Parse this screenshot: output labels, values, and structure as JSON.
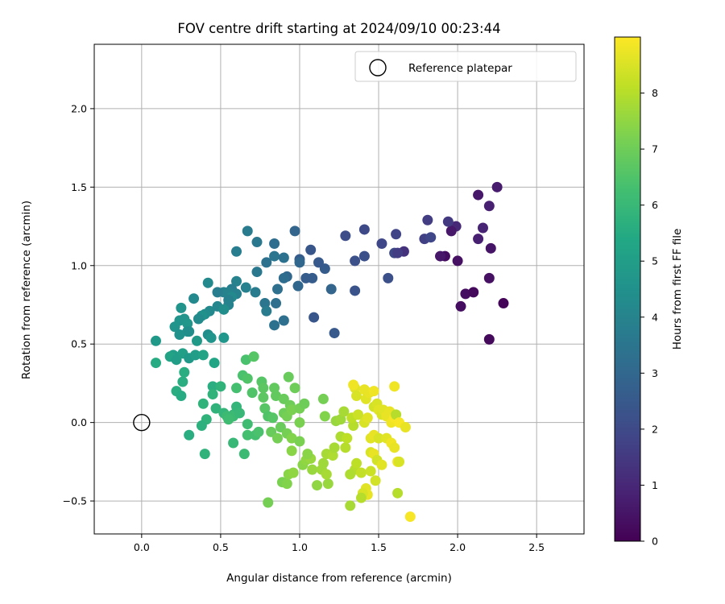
{
  "chart_data": {
    "type": "scatter",
    "title": "FOV centre drift starting at 2024/09/10 00:23:44",
    "xlabel": "Angular distance from reference (arcmin)",
    "ylabel": "Rotation from reference (arcmin)",
    "xlim": [
      -0.3,
      2.8
    ],
    "ylim": [
      -0.71,
      2.41
    ],
    "xticks": [
      0.0,
      0.5,
      1.0,
      1.5,
      2.0,
      2.5
    ],
    "xtick_labels": [
      "0.0",
      "0.5",
      "1.0",
      "1.5",
      "2.0",
      "2.5"
    ],
    "yticks": [
      -0.5,
      0.0,
      0.5,
      1.0,
      1.5,
      2.0
    ],
    "ytick_labels": [
      "−0.5",
      "0.0",
      "0.5",
      "1.0",
      "1.5",
      "2.0"
    ],
    "grid": true,
    "legend": {
      "location": "upper right",
      "entries": [
        "Reference platepar"
      ]
    },
    "reference_point": {
      "x": 0.0,
      "y": 0.0,
      "marker": "open circle"
    },
    "colorbar": {
      "label": "Hours from first FF file",
      "colormap": "viridis",
      "range": [
        0,
        9
      ],
      "ticks": [
        0,
        1,
        2,
        3,
        4,
        5,
        6,
        7,
        8
      ],
      "tick_labels": [
        "0",
        "1",
        "2",
        "3",
        "4",
        "5",
        "6",
        "7",
        "8"
      ]
    },
    "points": [
      {
        "x": 2.25,
        "y": 1.5,
        "h": 0.7
      },
      {
        "x": 2.13,
        "y": 1.45,
        "h": 0.6
      },
      {
        "x": 2.2,
        "y": 1.38,
        "h": 0.8
      },
      {
        "x": 2.16,
        "y": 1.24,
        "h": 0.9
      },
      {
        "x": 2.13,
        "y": 1.17,
        "h": 0.8
      },
      {
        "x": 2.21,
        "y": 1.11,
        "h": 0.5
      },
      {
        "x": 1.99,
        "y": 1.25,
        "h": 1.0
      },
      {
        "x": 1.96,
        "y": 1.22,
        "h": 0.6
      },
      {
        "x": 1.94,
        "y": 1.28,
        "h": 1.5
      },
      {
        "x": 2.0,
        "y": 1.03,
        "h": 0.4
      },
      {
        "x": 1.92,
        "y": 1.06,
        "h": 0.3
      },
      {
        "x": 1.89,
        "y": 1.06,
        "h": 0.6
      },
      {
        "x": 2.05,
        "y": 0.82,
        "h": 0.3
      },
      {
        "x": 2.1,
        "y": 0.83,
        "h": 0.2
      },
      {
        "x": 2.02,
        "y": 0.74,
        "h": 0.3
      },
      {
        "x": 2.29,
        "y": 0.76,
        "h": 0.1
      },
      {
        "x": 2.2,
        "y": 0.92,
        "h": 0.4
      },
      {
        "x": 2.2,
        "y": 0.53,
        "h": 0.2
      },
      {
        "x": 1.81,
        "y": 1.29,
        "h": 1.6
      },
      {
        "x": 1.79,
        "y": 1.17,
        "h": 1.7
      },
      {
        "x": 1.83,
        "y": 1.18,
        "h": 1.9
      },
      {
        "x": 1.66,
        "y": 1.09,
        "h": 1.3
      },
      {
        "x": 1.61,
        "y": 1.2,
        "h": 1.8
      },
      {
        "x": 1.6,
        "y": 1.08,
        "h": 2.0
      },
      {
        "x": 1.62,
        "y": 1.08,
        "h": 1.6
      },
      {
        "x": 1.52,
        "y": 1.14,
        "h": 1.9
      },
      {
        "x": 1.56,
        "y": 0.92,
        "h": 2.2
      },
      {
        "x": 1.41,
        "y": 1.23,
        "h": 2.0
      },
      {
        "x": 1.41,
        "y": 1.06,
        "h": 2.2
      },
      {
        "x": 1.35,
        "y": 1.03,
        "h": 2.2
      },
      {
        "x": 1.35,
        "y": 0.84,
        "h": 2.3
      },
      {
        "x": 1.29,
        "y": 1.19,
        "h": 2.1
      },
      {
        "x": 1.22,
        "y": 0.57,
        "h": 2.5
      },
      {
        "x": 1.16,
        "y": 0.98,
        "h": 2.6
      },
      {
        "x": 1.2,
        "y": 0.85,
        "h": 2.9
      },
      {
        "x": 1.12,
        "y": 1.02,
        "h": 2.5
      },
      {
        "x": 1.07,
        "y": 1.1,
        "h": 2.4
      },
      {
        "x": 1.08,
        "y": 0.92,
        "h": 2.6
      },
      {
        "x": 1.04,
        "y": 0.92,
        "h": 2.6
      },
      {
        "x": 1.09,
        "y": 0.67,
        "h": 2.4
      },
      {
        "x": 1.0,
        "y": 1.04,
        "h": 2.6
      },
      {
        "x": 1.0,
        "y": 1.02,
        "h": 3.0
      },
      {
        "x": 0.99,
        "y": 0.87,
        "h": 3.0
      },
      {
        "x": 0.97,
        "y": 1.22,
        "h": 2.9
      },
      {
        "x": 0.92,
        "y": 0.93,
        "h": 3.0
      },
      {
        "x": 0.9,
        "y": 0.92,
        "h": 3.2
      },
      {
        "x": 0.9,
        "y": 0.65,
        "h": 3.3
      },
      {
        "x": 0.86,
        "y": 0.85,
        "h": 3.3
      },
      {
        "x": 0.84,
        "y": 1.14,
        "h": 3.2
      },
      {
        "x": 0.84,
        "y": 1.06,
        "h": 3.5
      },
      {
        "x": 0.9,
        "y": 1.05,
        "h": 3.4
      },
      {
        "x": 0.85,
        "y": 0.76,
        "h": 3.3
      },
      {
        "x": 0.84,
        "y": 0.62,
        "h": 3.4
      },
      {
        "x": 0.79,
        "y": 1.02,
        "h": 3.4
      },
      {
        "x": 0.73,
        "y": 1.15,
        "h": 3.6
      },
      {
        "x": 0.67,
        "y": 1.22,
        "h": 3.7
      },
      {
        "x": 0.73,
        "y": 0.96,
        "h": 3.6
      },
      {
        "x": 0.78,
        "y": 0.76,
        "h": 3.5
      },
      {
        "x": 0.79,
        "y": 0.71,
        "h": 3.7
      },
      {
        "x": 0.72,
        "y": 0.83,
        "h": 3.7
      },
      {
        "x": 0.66,
        "y": 0.86,
        "h": 3.9
      },
      {
        "x": 0.6,
        "y": 1.09,
        "h": 3.8
      },
      {
        "x": 0.6,
        "y": 0.9,
        "h": 4.0
      },
      {
        "x": 0.57,
        "y": 0.85,
        "h": 3.8
      },
      {
        "x": 0.55,
        "y": 0.83,
        "h": 4.0
      },
      {
        "x": 0.6,
        "y": 0.82,
        "h": 3.9
      },
      {
        "x": 0.52,
        "y": 0.83,
        "h": 4.0
      },
      {
        "x": 0.57,
        "y": 0.8,
        "h": 4.2
      },
      {
        "x": 0.55,
        "y": 0.78,
        "h": 3.9
      },
      {
        "x": 0.55,
        "y": 0.75,
        "h": 4.0
      },
      {
        "x": 0.48,
        "y": 0.83,
        "h": 3.8
      },
      {
        "x": 0.42,
        "y": 0.89,
        "h": 4.2
      },
      {
        "x": 0.33,
        "y": 0.79,
        "h": 4.2
      },
      {
        "x": 0.48,
        "y": 0.74,
        "h": 4.1
      },
      {
        "x": 0.43,
        "y": 0.71,
        "h": 4.2
      },
      {
        "x": 0.4,
        "y": 0.69,
        "h": 4.4
      },
      {
        "x": 0.38,
        "y": 0.68,
        "h": 4.5
      },
      {
        "x": 0.36,
        "y": 0.66,
        "h": 4.3
      },
      {
        "x": 0.52,
        "y": 0.72,
        "h": 4.4
      },
      {
        "x": 0.25,
        "y": 0.73,
        "h": 4.6
      },
      {
        "x": 0.27,
        "y": 0.66,
        "h": 4.6
      },
      {
        "x": 0.24,
        "y": 0.65,
        "h": 4.6
      },
      {
        "x": 0.21,
        "y": 0.61,
        "h": 4.6
      },
      {
        "x": 0.29,
        "y": 0.63,
        "h": 4.7
      },
      {
        "x": 0.29,
        "y": 0.58,
        "h": 4.5
      },
      {
        "x": 0.24,
        "y": 0.56,
        "h": 4.5
      },
      {
        "x": 0.3,
        "y": 0.58,
        "h": 4.4
      },
      {
        "x": 0.42,
        "y": 0.56,
        "h": 4.4
      },
      {
        "x": 0.44,
        "y": 0.54,
        "h": 4.6
      },
      {
        "x": 0.52,
        "y": 0.54,
        "h": 4.7
      },
      {
        "x": 0.35,
        "y": 0.52,
        "h": 4.8
      },
      {
        "x": 0.09,
        "y": 0.52,
        "h": 4.8
      },
      {
        "x": 0.2,
        "y": 0.43,
        "h": 5.0
      },
      {
        "x": 0.26,
        "y": 0.44,
        "h": 5.1
      },
      {
        "x": 0.18,
        "y": 0.42,
        "h": 5.2
      },
      {
        "x": 0.22,
        "y": 0.4,
        "h": 5.0
      },
      {
        "x": 0.3,
        "y": 0.41,
        "h": 4.8
      },
      {
        "x": 0.34,
        "y": 0.43,
        "h": 5.0
      },
      {
        "x": 0.39,
        "y": 0.43,
        "h": 5.2
      },
      {
        "x": 0.46,
        "y": 0.38,
        "h": 5.3
      },
      {
        "x": 0.09,
        "y": 0.38,
        "h": 5.5
      },
      {
        "x": 0.27,
        "y": 0.32,
        "h": 5.6
      },
      {
        "x": 0.26,
        "y": 0.26,
        "h": 5.6
      },
      {
        "x": 0.45,
        "y": 0.23,
        "h": 5.6
      },
      {
        "x": 0.5,
        "y": 0.23,
        "h": 5.8
      },
      {
        "x": 0.45,
        "y": 0.18,
        "h": 5.8
      },
      {
        "x": 0.22,
        "y": 0.2,
        "h": 5.6
      },
      {
        "x": 0.25,
        "y": 0.17,
        "h": 5.5
      },
      {
        "x": 0.39,
        "y": 0.12,
        "h": 5.8
      },
      {
        "x": 0.47,
        "y": 0.09,
        "h": 5.8
      },
      {
        "x": 0.52,
        "y": 0.06,
        "h": 5.9
      },
      {
        "x": 0.54,
        "y": 0.04,
        "h": 6.1
      },
      {
        "x": 0.58,
        "y": 0.05,
        "h": 6.0
      },
      {
        "x": 0.6,
        "y": 0.1,
        "h": 5.9
      },
      {
        "x": 0.58,
        "y": 0.04,
        "h": 6.1
      },
      {
        "x": 0.62,
        "y": 0.06,
        "h": 6.0
      },
      {
        "x": 0.55,
        "y": 0.02,
        "h": 6.2
      },
      {
        "x": 0.41,
        "y": 0.02,
        "h": 5.8
      },
      {
        "x": 0.38,
        "y": -0.02,
        "h": 5.7
      },
      {
        "x": 0.3,
        "y": -0.08,
        "h": 5.6
      },
      {
        "x": 0.4,
        "y": -0.2,
        "h": 5.8
      },
      {
        "x": 0.58,
        "y": -0.13,
        "h": 6.0
      },
      {
        "x": 0.65,
        "y": -0.2,
        "h": 6.1
      },
      {
        "x": 0.67,
        "y": -0.01,
        "h": 6.2
      },
      {
        "x": 0.67,
        "y": -0.08,
        "h": 6.3
      },
      {
        "x": 0.72,
        "y": -0.08,
        "h": 6.3
      },
      {
        "x": 0.74,
        "y": -0.06,
        "h": 6.4
      },
      {
        "x": 0.66,
        "y": 0.4,
        "h": 6.4
      },
      {
        "x": 0.71,
        "y": 0.42,
        "h": 6.6
      },
      {
        "x": 0.6,
        "y": 0.22,
        "h": 6.3
      },
      {
        "x": 0.64,
        "y": 0.3,
        "h": 6.4
      },
      {
        "x": 0.67,
        "y": 0.28,
        "h": 6.5
      },
      {
        "x": 0.7,
        "y": 0.19,
        "h": 6.5
      },
      {
        "x": 0.76,
        "y": 0.26,
        "h": 6.6
      },
      {
        "x": 0.77,
        "y": 0.22,
        "h": 6.7
      },
      {
        "x": 0.77,
        "y": 0.16,
        "h": 6.7
      },
      {
        "x": 0.78,
        "y": 0.09,
        "h": 6.6
      },
      {
        "x": 0.8,
        "y": 0.04,
        "h": 6.5
      },
      {
        "x": 0.83,
        "y": 0.03,
        "h": 6.6
      },
      {
        "x": 0.84,
        "y": 0.22,
        "h": 6.8
      },
      {
        "x": 0.85,
        "y": 0.17,
        "h": 6.8
      },
      {
        "x": 0.9,
        "y": 0.15,
        "h": 6.9
      },
      {
        "x": 0.93,
        "y": 0.29,
        "h": 6.9
      },
      {
        "x": 0.9,
        "y": 0.06,
        "h": 7.0
      },
      {
        "x": 0.92,
        "y": 0.04,
        "h": 7.1
      },
      {
        "x": 0.94,
        "y": 0.11,
        "h": 7.0
      },
      {
        "x": 0.95,
        "y": 0.08,
        "h": 7.2
      },
      {
        "x": 0.97,
        "y": 0.22,
        "h": 7.0
      },
      {
        "x": 1.0,
        "y": 0.09,
        "h": 7.1
      },
      {
        "x": 1.03,
        "y": 0.12,
        "h": 7.0
      },
      {
        "x": 1.0,
        "y": 0.0,
        "h": 7.2
      },
      {
        "x": 0.88,
        "y": -0.03,
        "h": 6.9
      },
      {
        "x": 0.82,
        "y": -0.06,
        "h": 6.9
      },
      {
        "x": 0.86,
        "y": -0.1,
        "h": 7.1
      },
      {
        "x": 0.92,
        "y": -0.07,
        "h": 7.1
      },
      {
        "x": 0.95,
        "y": -0.1,
        "h": 7.3
      },
      {
        "x": 1.0,
        "y": -0.12,
        "h": 7.2
      },
      {
        "x": 0.95,
        "y": -0.18,
        "h": 7.4
      },
      {
        "x": 0.8,
        "y": -0.51,
        "h": 7.1
      },
      {
        "x": 0.89,
        "y": -0.38,
        "h": 7.2
      },
      {
        "x": 0.92,
        "y": -0.39,
        "h": 7.3
      },
      {
        "x": 0.93,
        "y": -0.33,
        "h": 7.4
      },
      {
        "x": 0.96,
        "y": -0.32,
        "h": 7.5
      },
      {
        "x": 1.02,
        "y": -0.27,
        "h": 7.4
      },
      {
        "x": 1.04,
        "y": -0.24,
        "h": 7.5
      },
      {
        "x": 1.07,
        "y": -0.23,
        "h": 7.6
      },
      {
        "x": 1.05,
        "y": -0.2,
        "h": 7.4
      },
      {
        "x": 1.08,
        "y": -0.3,
        "h": 7.6
      },
      {
        "x": 1.11,
        "y": -0.4,
        "h": 7.5
      },
      {
        "x": 1.14,
        "y": -0.3,
        "h": 7.7
      },
      {
        "x": 1.18,
        "y": -0.39,
        "h": 7.6
      },
      {
        "x": 1.17,
        "y": -0.33,
        "h": 7.8
      },
      {
        "x": 1.15,
        "y": -0.26,
        "h": 7.7
      },
      {
        "x": 1.17,
        "y": -0.2,
        "h": 7.8
      },
      {
        "x": 1.21,
        "y": -0.21,
        "h": 7.9
      },
      {
        "x": 1.22,
        "y": -0.16,
        "h": 7.8
      },
      {
        "x": 1.16,
        "y": 0.04,
        "h": 7.3
      },
      {
        "x": 1.15,
        "y": 0.15,
        "h": 7.1
      },
      {
        "x": 1.23,
        "y": 0.01,
        "h": 7.6
      },
      {
        "x": 1.26,
        "y": 0.02,
        "h": 7.7
      },
      {
        "x": 1.28,
        "y": 0.07,
        "h": 7.8
      },
      {
        "x": 1.26,
        "y": -0.09,
        "h": 7.9
      },
      {
        "x": 1.29,
        "y": -0.16,
        "h": 8.0
      },
      {
        "x": 1.3,
        "y": -0.1,
        "h": 8.1
      },
      {
        "x": 1.34,
        "y": -0.02,
        "h": 8.0
      },
      {
        "x": 1.33,
        "y": 0.03,
        "h": 8.1
      },
      {
        "x": 1.35,
        "y": 0.22,
        "h": 8.6
      },
      {
        "x": 1.34,
        "y": 0.24,
        "h": 8.8
      },
      {
        "x": 1.36,
        "y": 0.17,
        "h": 8.5
      },
      {
        "x": 1.37,
        "y": 0.05,
        "h": 8.3
      },
      {
        "x": 1.41,
        "y": 0.21,
        "h": 8.7
      },
      {
        "x": 1.42,
        "y": 0.15,
        "h": 8.6
      },
      {
        "x": 1.44,
        "y": 0.19,
        "h": 8.7
      },
      {
        "x": 1.47,
        "y": 0.2,
        "h": 8.8
      },
      {
        "x": 1.41,
        "y": 0.0,
        "h": 8.5
      },
      {
        "x": 1.43,
        "y": 0.03,
        "h": 8.6
      },
      {
        "x": 1.47,
        "y": 0.1,
        "h": 8.4
      },
      {
        "x": 1.49,
        "y": 0.12,
        "h": 8.5
      },
      {
        "x": 1.5,
        "y": 0.08,
        "h": 8.6
      },
      {
        "x": 1.52,
        "y": 0.05,
        "h": 8.5
      },
      {
        "x": 1.53,
        "y": 0.08,
        "h": 8.6
      },
      {
        "x": 1.55,
        "y": 0.04,
        "h": 8.7
      },
      {
        "x": 1.57,
        "y": 0.07,
        "h": 8.7
      },
      {
        "x": 1.58,
        "y": 0.0,
        "h": 8.8
      },
      {
        "x": 1.6,
        "y": 0.03,
        "h": 8.9
      },
      {
        "x": 1.6,
        "y": 0.23,
        "h": 8.8
      },
      {
        "x": 1.61,
        "y": 0.05,
        "h": 8.0
      },
      {
        "x": 1.63,
        "y": 0.0,
        "h": 8.9
      },
      {
        "x": 1.67,
        "y": -0.03,
        "h": 8.7
      },
      {
        "x": 1.45,
        "y": -0.1,
        "h": 8.6
      },
      {
        "x": 1.47,
        "y": -0.08,
        "h": 8.7
      },
      {
        "x": 1.5,
        "y": -0.1,
        "h": 8.5
      },
      {
        "x": 1.55,
        "y": -0.1,
        "h": 8.6
      },
      {
        "x": 1.58,
        "y": -0.13,
        "h": 8.8
      },
      {
        "x": 1.6,
        "y": -0.16,
        "h": 8.7
      },
      {
        "x": 1.45,
        "y": -0.19,
        "h": 8.5
      },
      {
        "x": 1.47,
        "y": -0.2,
        "h": 8.7
      },
      {
        "x": 1.49,
        "y": -0.24,
        "h": 8.4
      },
      {
        "x": 1.52,
        "y": -0.27,
        "h": 8.6
      },
      {
        "x": 1.62,
        "y": -0.25,
        "h": 8.8
      },
      {
        "x": 1.63,
        "y": -0.25,
        "h": 8.5
      },
      {
        "x": 1.35,
        "y": -0.3,
        "h": 8.0
      },
      {
        "x": 1.36,
        "y": -0.26,
        "h": 8.1
      },
      {
        "x": 1.39,
        "y": -0.32,
        "h": 8.2
      },
      {
        "x": 1.45,
        "y": -0.31,
        "h": 8.3
      },
      {
        "x": 1.48,
        "y": -0.37,
        "h": 8.4
      },
      {
        "x": 1.42,
        "y": -0.42,
        "h": 8.6
      },
      {
        "x": 1.43,
        "y": -0.46,
        "h": 8.7
      },
      {
        "x": 1.4,
        "y": -0.45,
        "h": 8.5
      },
      {
        "x": 1.39,
        "y": -0.48,
        "h": 8.0
      },
      {
        "x": 1.32,
        "y": -0.53,
        "h": 7.8
      },
      {
        "x": 1.32,
        "y": -0.33,
        "h": 7.9
      },
      {
        "x": 1.62,
        "y": -0.45,
        "h": 8.0
      },
      {
        "x": 1.7,
        "y": -0.6,
        "h": 8.9
      }
    ]
  }
}
